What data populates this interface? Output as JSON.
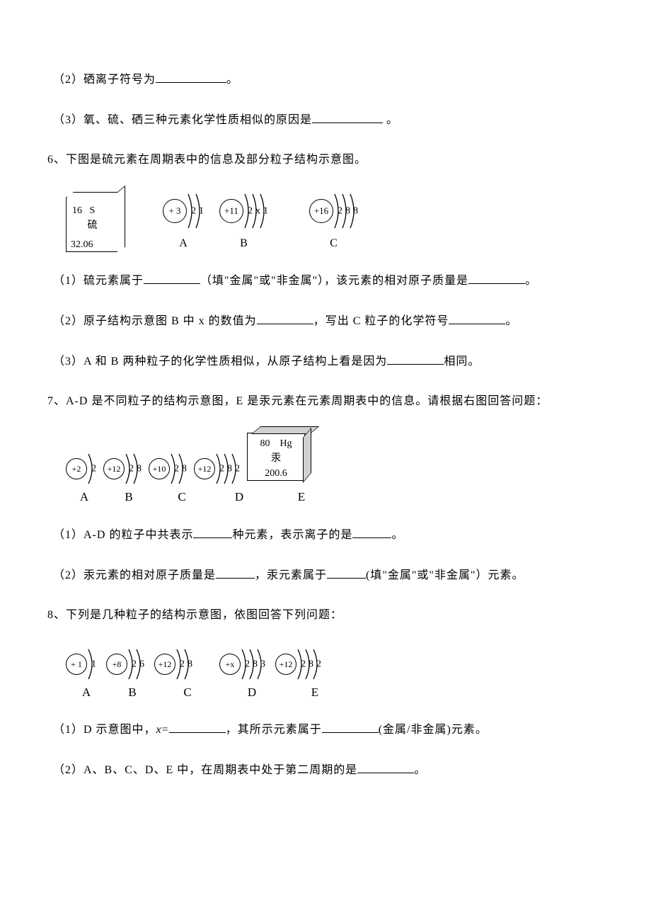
{
  "q5": {
    "p2": "（2）硒离子符号为",
    "p2_end": "。",
    "p3": "（3）氧、硫、硒三种元素化学性质相似的原因是",
    "p3_end": " 。"
  },
  "q6": {
    "intro": "6、下图是硫元素在周期表中的信息及部分粒子结构示意图。",
    "element": {
      "num": "16",
      "sym": "S",
      "name": "硫",
      "mass": "32.06"
    },
    "atoms": {
      "A": {
        "nucleus": "+ 3",
        "shells": [
          "2",
          "1"
        ]
      },
      "B": {
        "nucleus": "+11",
        "shells": [
          "2",
          "x",
          "1"
        ]
      },
      "C": {
        "nucleus": "+16",
        "shells": [
          "2",
          "8",
          "8"
        ]
      }
    },
    "labels": {
      "A": "A",
      "B": "B",
      "C": "C"
    },
    "p1a": "（1）硫元素属于",
    "p1b": "（填\"金属\"或\"非金属\"），该元素的相对原子质量是",
    "p1c": "。",
    "p2a": "（2）原子结构示意图 B 中 x 的数值为",
    "p2b": "，写出 C 粒子的化学符号",
    "p2c": "。",
    "p3a": "（3）A 和 B 两种粒子的化学性质相似，从原子结构上看是因为",
    "p3b": "相同。"
  },
  "q7": {
    "intro": "7、A-D 是不同粒子的结构示意图，E 是汞元素在元素周期表中的信息。请根据右图回答问题：",
    "atoms": {
      "A": {
        "nucleus": "+2",
        "shells": [
          "2"
        ]
      },
      "B": {
        "nucleus": "+12",
        "shells": [
          "2",
          "8"
        ]
      },
      "C": {
        "nucleus": "+10",
        "shells": [
          "2",
          "8"
        ]
      },
      "D": {
        "nucleus": "+12",
        "shells": [
          "2",
          "8",
          "2"
        ]
      }
    },
    "element": {
      "num": "80",
      "sym": "Hg",
      "name": "汞",
      "mass": "200.6"
    },
    "labels": {
      "A": "A",
      "B": "B",
      "C": "C",
      "D": "D",
      "E": "E"
    },
    "p1a": "（1）A-D 的粒子中共表示",
    "p1b": "种元素，表示离子的是",
    "p1c": "。",
    "p2a": "（2）汞元素的相对原子质量是",
    "p2b": "，汞元素属于",
    "p2c": "(填\"金属\"或\"非金属\"）元素。"
  },
  "q8": {
    "intro": "8、下列是几种粒子的结构示意图，依图回答下列问题：",
    "atoms": {
      "A": {
        "nucleus": "+ 1",
        "shells": [
          "1"
        ]
      },
      "B": {
        "nucleus": "+8",
        "shells": [
          "2",
          "6"
        ]
      },
      "C": {
        "nucleus": "+12",
        "shells": [
          "2",
          "8"
        ]
      },
      "D": {
        "nucleus": "+x",
        "shells": [
          "2",
          "8",
          "3"
        ]
      },
      "E": {
        "nucleus": "+12",
        "shells": [
          "2",
          "8",
          "2"
        ]
      }
    },
    "labels": {
      "A": "A",
      "B": "B",
      "C": "C",
      "D": "D",
      "E": "E"
    },
    "p1a": "（1）D 示意图中，",
    "p1var": "x",
    "p1eq": "=",
    "p1b": "，其所示元素属于",
    "p1c": "(金属/非金属)元素。",
    "p2a": "（2）A、B、C、D、E 中，在周期表中处于第二周期的是",
    "p2b": "。"
  }
}
